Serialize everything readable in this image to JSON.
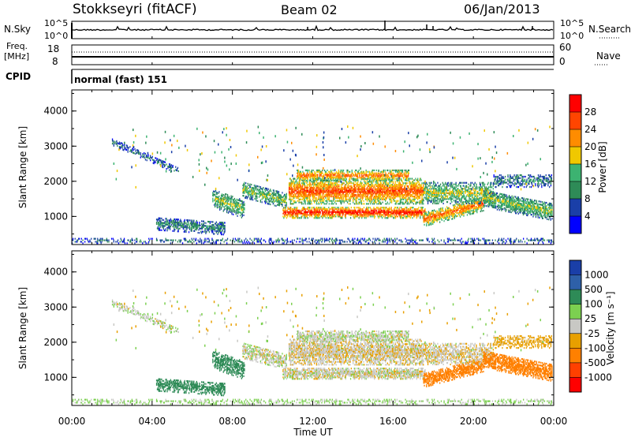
{
  "header": {
    "title": "Stokkseyri (fitACF)",
    "beam": "Beam 02",
    "date": "06/Jan/2013"
  },
  "nsky_panel": {
    "left_label": "N.Sky",
    "left_ticks": [
      "10^5",
      "10^0"
    ],
    "right_ticks": [
      "10^5",
      "10^0"
    ],
    "right_label": "N.Search"
  },
  "freq_panel": {
    "left_label_line1": "Freq.",
    "left_label_line2": "[MHz]",
    "left_ticks": [
      "18",
      "8"
    ],
    "right_ticks": [
      "60",
      "0"
    ],
    "right_label": "Nave"
  },
  "cpid_panel": {
    "label": "CPID",
    "value": "normal (fast) 151"
  },
  "colors": {
    "power": [
      "#0000ff",
      "#1a3fa8",
      "#2e8b57",
      "#3cb371",
      "#f0c800",
      "#ff8c00",
      "#ff4500",
      "#ff0000"
    ],
    "velocity": [
      "#1a3fa8",
      "#2e60a8",
      "#2e8b57",
      "#7cd050",
      "#c8c8c4",
      "#e8a000",
      "#ff8000",
      "#ff4000",
      "#ff0000"
    ],
    "grey": "#c8c8c4"
  },
  "chart_data": [
    {
      "type": "heatmap",
      "panel": "power",
      "ylabel": "Slant Range [km]",
      "yticks": [
        "1000",
        "2000",
        "3000",
        "4000"
      ],
      "ylim": [
        200,
        4600
      ],
      "xlim": [
        "00:00",
        "24:00"
      ],
      "colorbar": {
        "label": "Power [dB]",
        "ticks": [
          "4",
          "8",
          "12",
          "16",
          "20",
          "24",
          "28"
        ],
        "range": [
          0,
          32
        ]
      }
    },
    {
      "type": "heatmap",
      "panel": "velocity",
      "ylabel": "Slant Range [km]",
      "yticks": [
        "1000",
        "2000",
        "3000",
        "4000"
      ],
      "ylim": [
        200,
        4600
      ],
      "xlim": [
        "00:00",
        "24:00"
      ],
      "xticks": [
        "00:00",
        "04:00",
        "08:00",
        "12:00",
        "16:00",
        "20:00",
        "00:00"
      ],
      "xlabel": "Time UT",
      "colorbar": {
        "label": "Velocity [m s⁻¹]",
        "ticks": [
          "1000",
          "500",
          "100",
          "25",
          "-25",
          "-100",
          "-500",
          "-1000"
        ]
      }
    }
  ]
}
